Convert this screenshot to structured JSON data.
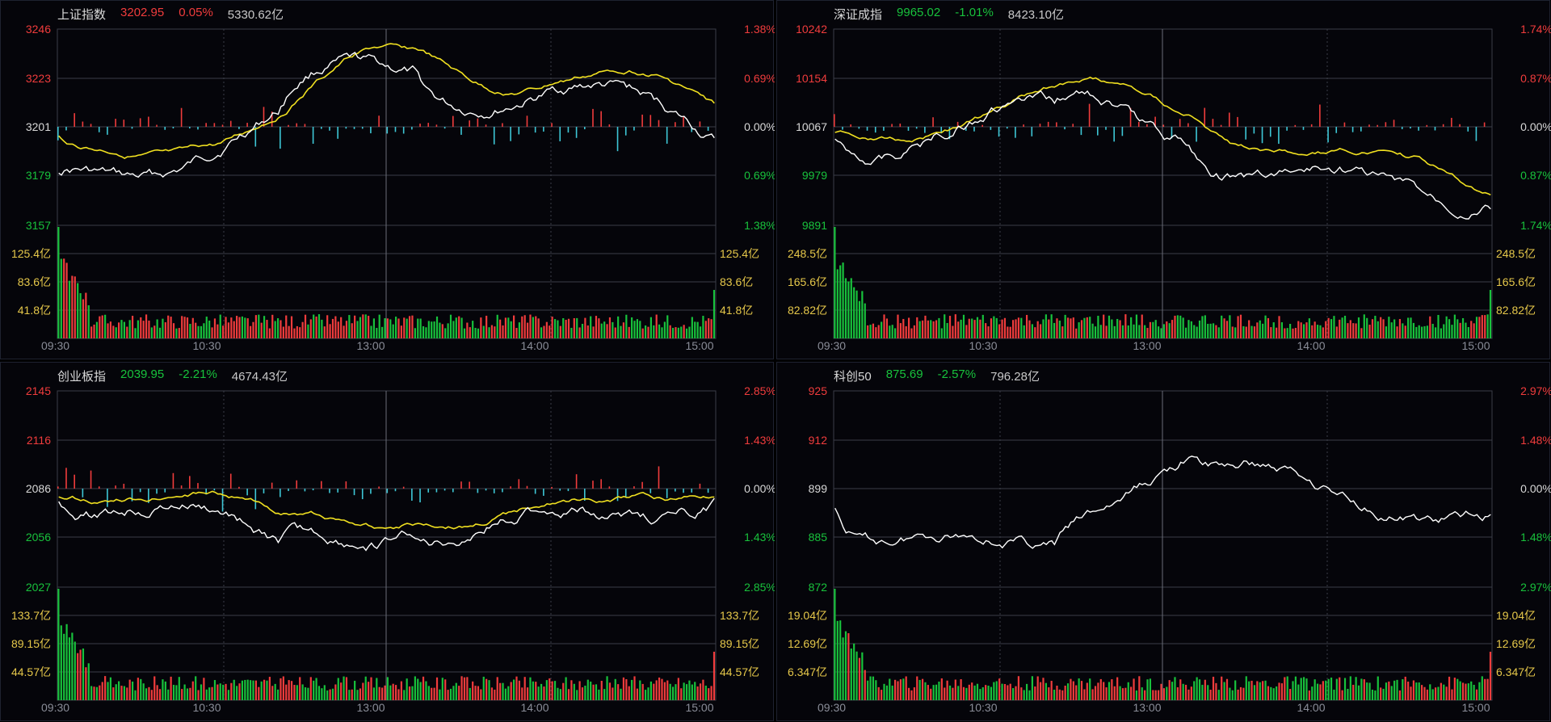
{
  "colors": {
    "up": "#f03c3c",
    "down": "#18c23c",
    "neutral": "#d8d8d8",
    "vol_axis": "#e6c84a",
    "price_line": "#ffffff",
    "avg_line": "#f0e020",
    "grid": "#3a3d48",
    "background": "#05050a"
  },
  "panels": [
    {
      "name": "上证指数",
      "price": "3202.95",
      "change_pct": "0.05%",
      "direction": "up",
      "amount": "5330.62亿",
      "has_avg_line": true,
      "price_ticks": [
        "3246",
        "3223",
        "3201",
        "3179",
        "3157"
      ],
      "pct_ticks": [
        "1.38%",
        "0.69%",
        "0.00%",
        "0.69%",
        "1.38%"
      ],
      "vol_ticks": [
        "125.4亿",
        "83.6亿",
        "41.8亿"
      ],
      "time_labels": [
        "09:30",
        "10:30",
        "13:00",
        "14:00",
        "15:00"
      ]
    },
    {
      "name": "深证成指",
      "price": "9965.02",
      "change_pct": "-1.01%",
      "direction": "down",
      "amount": "8423.10亿",
      "has_avg_line": true,
      "price_ticks": [
        "10242",
        "10154",
        "10067",
        "9979",
        "9891"
      ],
      "pct_ticks": [
        "1.74%",
        "0.87%",
        "0.00%",
        "0.87%",
        "1.74%"
      ],
      "vol_ticks": [
        "248.5亿",
        "165.6亿",
        "82.82亿"
      ],
      "time_labels": [
        "09:30",
        "10:30",
        "13:00",
        "14:00",
        "15:00"
      ]
    },
    {
      "name": "创业板指",
      "price": "2039.95",
      "change_pct": "-2.21%",
      "direction": "down",
      "amount": "4674.43亿",
      "has_avg_line": true,
      "price_ticks": [
        "2145",
        "2116",
        "2086",
        "2056",
        "2027"
      ],
      "pct_ticks": [
        "2.85%",
        "1.43%",
        "0.00%",
        "1.43%",
        "2.85%"
      ],
      "vol_ticks": [
        "133.7亿",
        "89.15亿",
        "44.57亿"
      ],
      "time_labels": [
        "09:30",
        "10:30",
        "13:00",
        "14:00",
        "15:00"
      ]
    },
    {
      "name": "科创50",
      "price": "875.69",
      "change_pct": "-2.57%",
      "direction": "down",
      "amount": "796.28亿",
      "has_avg_line": false,
      "price_ticks": [
        "925",
        "912",
        "899",
        "885",
        "872"
      ],
      "pct_ticks": [
        "2.97%",
        "1.48%",
        "0.00%",
        "1.48%",
        "2.97%"
      ],
      "vol_ticks": [
        "19.04亿",
        "12.69亿",
        "6.347亿"
      ],
      "time_labels": [
        "09:30",
        "10:30",
        "13:00",
        "14:00",
        "15:00"
      ]
    }
  ]
}
